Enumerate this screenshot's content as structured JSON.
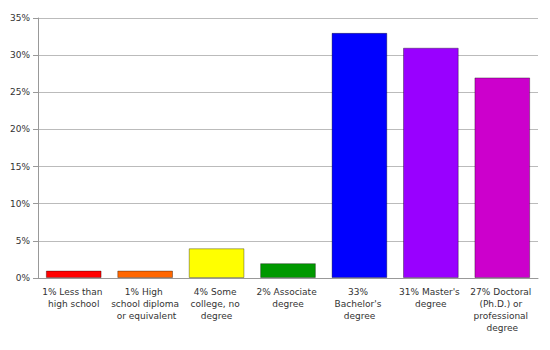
{
  "chart_data": {
    "type": "bar",
    "categories": [
      "1% Less than high school",
      "1% High school diploma or equivalent",
      "4% Some college, no degree",
      "2% Associate degree",
      "33% Bachelor's degree",
      "31% Master's degree",
      "27% Doctoral (Ph.D.) or professional degree"
    ],
    "values": [
      1,
      1,
      4,
      2,
      33,
      31,
      27
    ],
    "colors": [
      "#ff0000",
      "#ff6600",
      "#ffff00",
      "#009900",
      "#0000ff",
      "#9900ff",
      "#cc00cc"
    ],
    "ylim": [
      0,
      35
    ],
    "yticks": [
      {
        "value": 0,
        "label": "0%"
      },
      {
        "value": 5,
        "label": "5%"
      },
      {
        "value": 10,
        "label": "10%"
      },
      {
        "value": 15,
        "label": "15%"
      },
      {
        "value": 20,
        "label": "20%"
      },
      {
        "value": 25,
        "label": "25%"
      },
      {
        "value": 30,
        "label": "30%"
      },
      {
        "value": 35,
        "label": "35%"
      }
    ],
    "grid": true
  }
}
